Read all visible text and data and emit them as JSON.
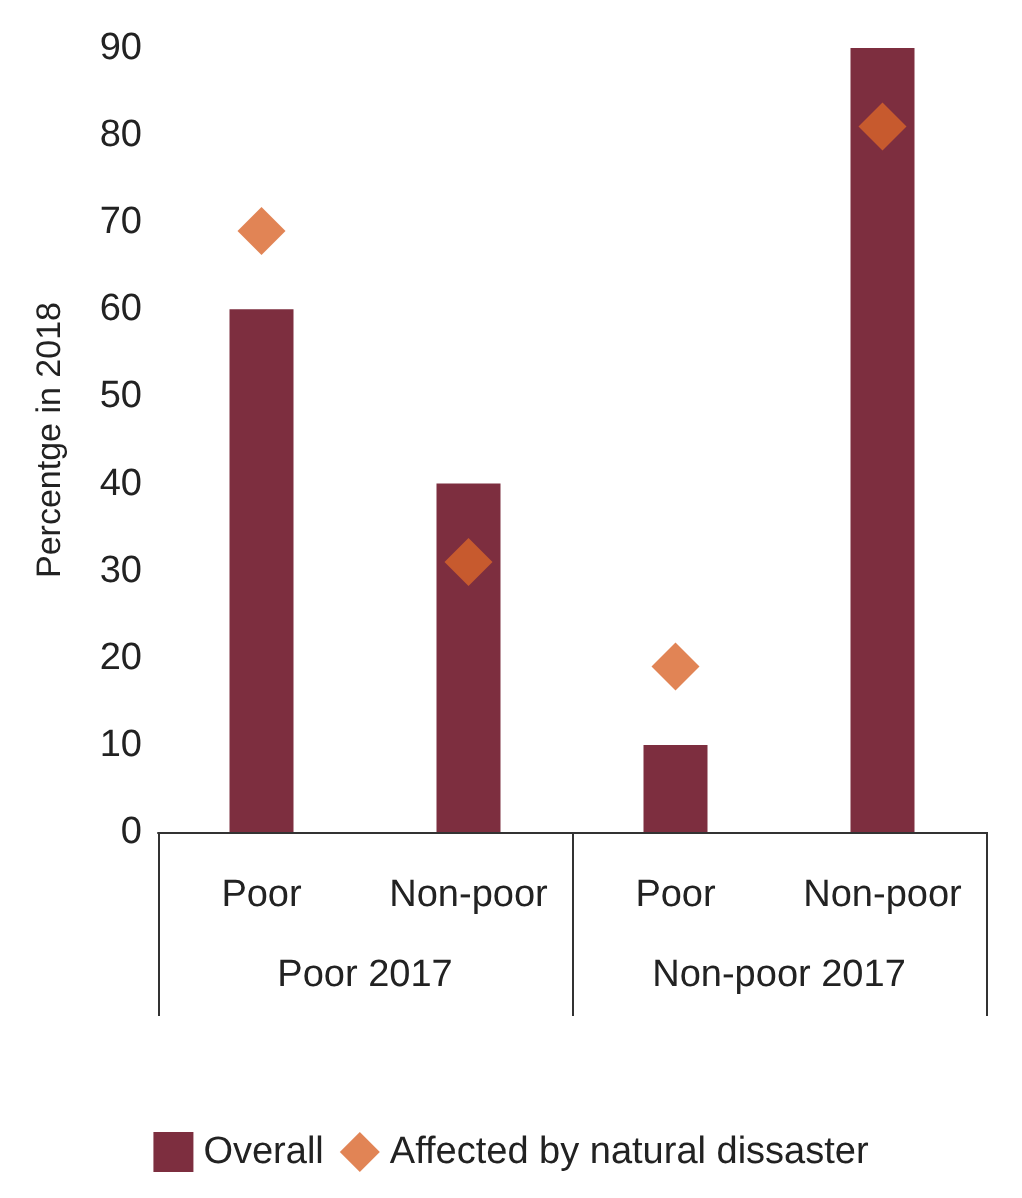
{
  "chart_data": {
    "type": "bar",
    "ylabel": "Percentge in 2018",
    "categories": [
      "Poor",
      "Non-poor",
      "Poor",
      "Non-poor"
    ],
    "annotations": [
      "Poor 2017",
      "Non-poor 2017"
    ],
    "series": [
      {
        "name": "Overall",
        "color": "#7d2e3f",
        "values": [
          60,
          40,
          10,
          90
        ]
      },
      {
        "name": "Affected by natural dissaster",
        "type": "scatter",
        "color": "#d9652b",
        "values": [
          69,
          31,
          19,
          81
        ]
      }
    ],
    "ylim": [
      0,
      90
    ],
    "yticks": [
      0,
      10,
      20,
      30,
      40,
      50,
      60,
      70,
      80,
      90
    ],
    "grid": false,
    "legend": "bottom",
    "marker": "diamond"
  }
}
